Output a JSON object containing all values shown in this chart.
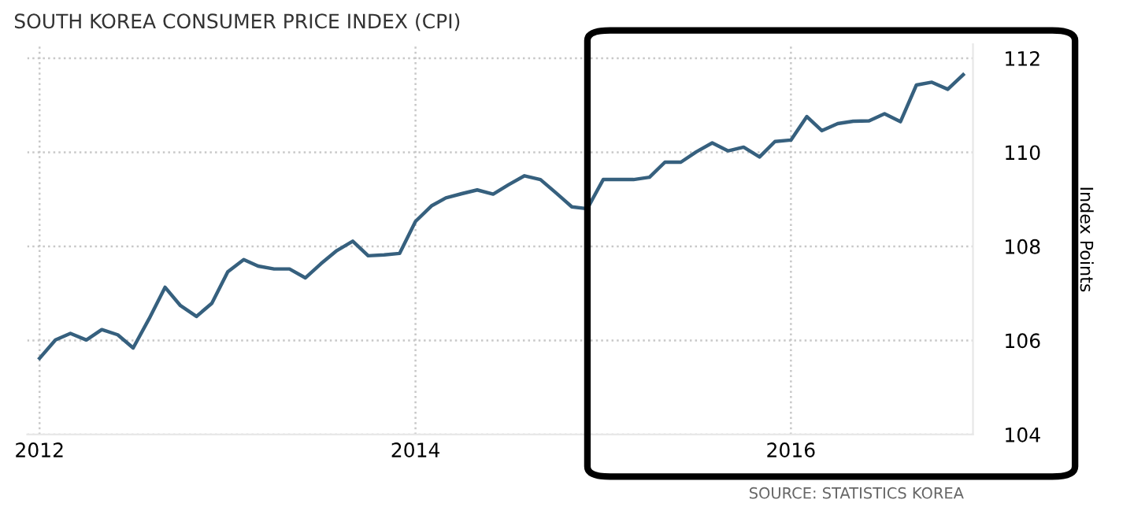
{
  "chart_data": {
    "type": "line",
    "title": "SOUTH KOREA CONSUMER PRICE INDEX (CPI)",
    "ylabel": "Index Points",
    "x": [
      "2012-01",
      "2012-02",
      "2012-03",
      "2012-04",
      "2012-05",
      "2012-06",
      "2012-07",
      "2012-08",
      "2012-09",
      "2012-10",
      "2012-11",
      "2012-12",
      "2013-01",
      "2013-02",
      "2013-03",
      "2013-04",
      "2013-05",
      "2013-06",
      "2013-07",
      "2013-08",
      "2013-09",
      "2013-10",
      "2013-11",
      "2013-12",
      "2014-01",
      "2014-02",
      "2014-03",
      "2014-04",
      "2014-05",
      "2014-06",
      "2014-07",
      "2014-08",
      "2014-09",
      "2014-10",
      "2014-11",
      "2014-12",
      "2015-01",
      "2015-02",
      "2015-03",
      "2015-04",
      "2015-05",
      "2015-06",
      "2015-07",
      "2015-08",
      "2015-09",
      "2015-10",
      "2015-11",
      "2015-12",
      "2016-01",
      "2016-02",
      "2016-03",
      "2016-04",
      "2016-05",
      "2016-06",
      "2016-07",
      "2016-08",
      "2016-09",
      "2016-10",
      "2016-11",
      "2016-12"
    ],
    "series": [
      {
        "color": "#36607e",
        "values": [
          105.62,
          106.01,
          106.15,
          106.01,
          106.23,
          106.12,
          105.84,
          106.46,
          107.13,
          106.74,
          106.51,
          106.79,
          107.46,
          107.72,
          107.58,
          107.52,
          107.52,
          107.33,
          107.63,
          107.91,
          108.11,
          107.8,
          107.82,
          107.85,
          108.53,
          108.86,
          109.03,
          109.12,
          109.2,
          109.11,
          109.31,
          109.5,
          109.42,
          109.14,
          108.84,
          108.8,
          109.42,
          109.42,
          109.42,
          109.47,
          109.79,
          109.79,
          110.01,
          110.2,
          110.03,
          110.11,
          109.9,
          110.23,
          110.26,
          110.76,
          110.46,
          110.61,
          110.66,
          110.67,
          110.82,
          110.65,
          111.43,
          111.49,
          111.34,
          111.65
        ]
      }
    ],
    "xlim": [
      "2011-12-08",
      "2016-12-20"
    ],
    "xticks": [
      "2012",
      "2014",
      "2016"
    ],
    "ylim": [
      104,
      112.3
    ],
    "yticks": [
      104,
      106,
      108,
      110,
      112
    ],
    "grid": true,
    "marker": "none",
    "line_style": "solid",
    "legend": false,
    "annotations": [
      "SOURCE: STATISTICS KOREA"
    ]
  }
}
